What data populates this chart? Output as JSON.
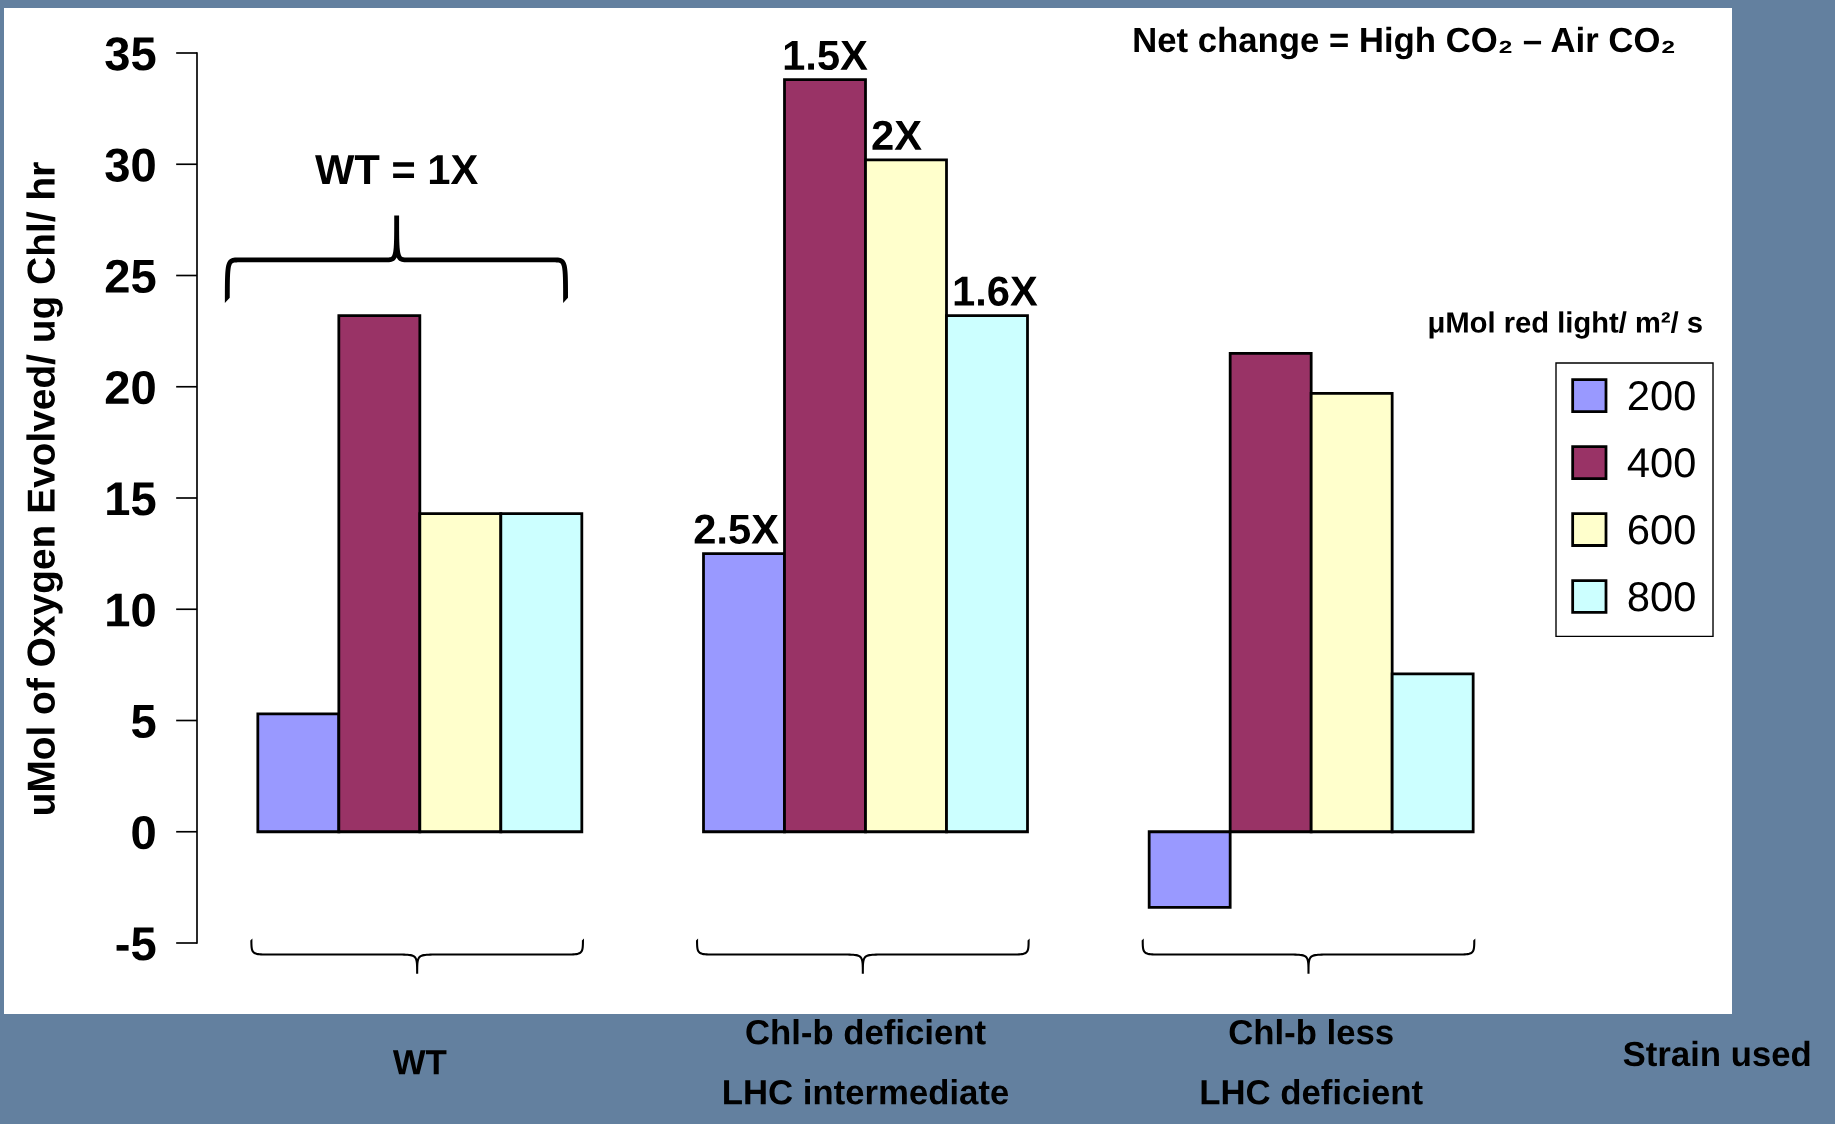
{
  "chart_data": {
    "type": "bar",
    "title": "Net change = High CO₂ – Air CO₂",
    "xlabel": "Strain used",
    "ylabel": "uMol of Oxygen Evolved/ ug Chl/ hr",
    "legend_title": "μMol red light/ m²/ s",
    "categories": [
      "WT",
      "Chl-b deficient\nLHC intermediate",
      "Chl-b less\nLHC deficient"
    ],
    "series": [
      {
        "name": "200",
        "color": "#9999ff",
        "values": [
          5.3,
          12.5,
          -3.4
        ]
      },
      {
        "name": "400",
        "color": "#993366",
        "values": [
          23.2,
          33.8,
          21.5
        ]
      },
      {
        "name": "600",
        "color": "#ffffcc",
        "values": [
          14.3,
          30.2,
          19.7
        ]
      },
      {
        "name": "800",
        "color": "#ccffff",
        "values": [
          14.3,
          23.2,
          7.1
        ]
      }
    ],
    "ylim": [
      -5,
      35
    ],
    "yticks": [
      -5,
      0,
      5,
      10,
      15,
      20,
      25,
      30,
      35
    ],
    "legend": "right",
    "annotations": [
      "WT = 1X",
      {
        "text": "2.5X",
        "x": "Chl-b deficient\nLHC intermediate",
        "y": 12.5
      },
      {
        "text": "1.5X",
        "x": "Chl-b deficient\nLHC intermediate",
        "y": 33.8
      },
      {
        "text": "2X",
        "x": "Chl-b deficient\nLHC intermediate",
        "y": 30.2
      },
      {
        "text": "1.6X",
        "x": "Chl-b deficient\nLHC intermediate",
        "y": 23.2
      }
    ]
  }
}
